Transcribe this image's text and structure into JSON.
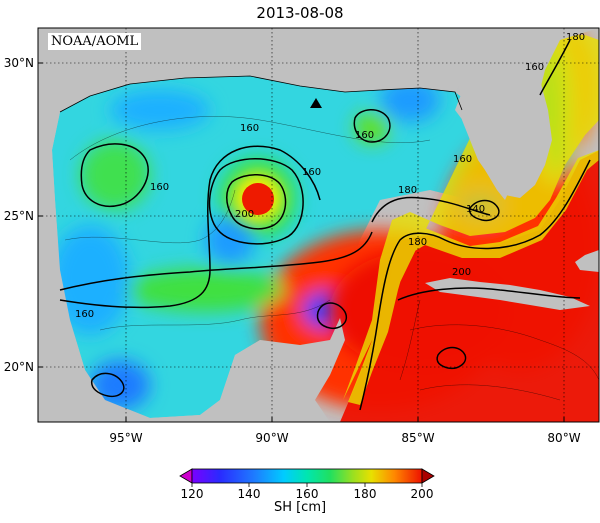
{
  "title": "2013-08-08",
  "credit": "NOAA/AOML",
  "map": {
    "lat_ticks": [
      "30°N",
      "25°N",
      "20°N"
    ],
    "lon_ticks": [
      "95°W",
      "90°W",
      "85°W",
      "80°W"
    ],
    "contour_labels": [
      "160",
      "160",
      "160",
      "160",
      "160",
      "160",
      "160",
      "180",
      "180",
      "180",
      "200",
      "200"
    ],
    "contour_label_140": "140",
    "marker": "triangle"
  },
  "colorbar": {
    "ticks": [
      "120",
      "140",
      "160",
      "180",
      "200"
    ],
    "label": "SH [cm]",
    "colors": [
      "#cc00cc",
      "#7a00ff",
      "#2a2aff",
      "#1e7bff",
      "#00ccff",
      "#00e6b0",
      "#20e060",
      "#80e020",
      "#e0e000",
      "#ff9900",
      "#ff3300",
      "#ee0000"
    ]
  }
}
